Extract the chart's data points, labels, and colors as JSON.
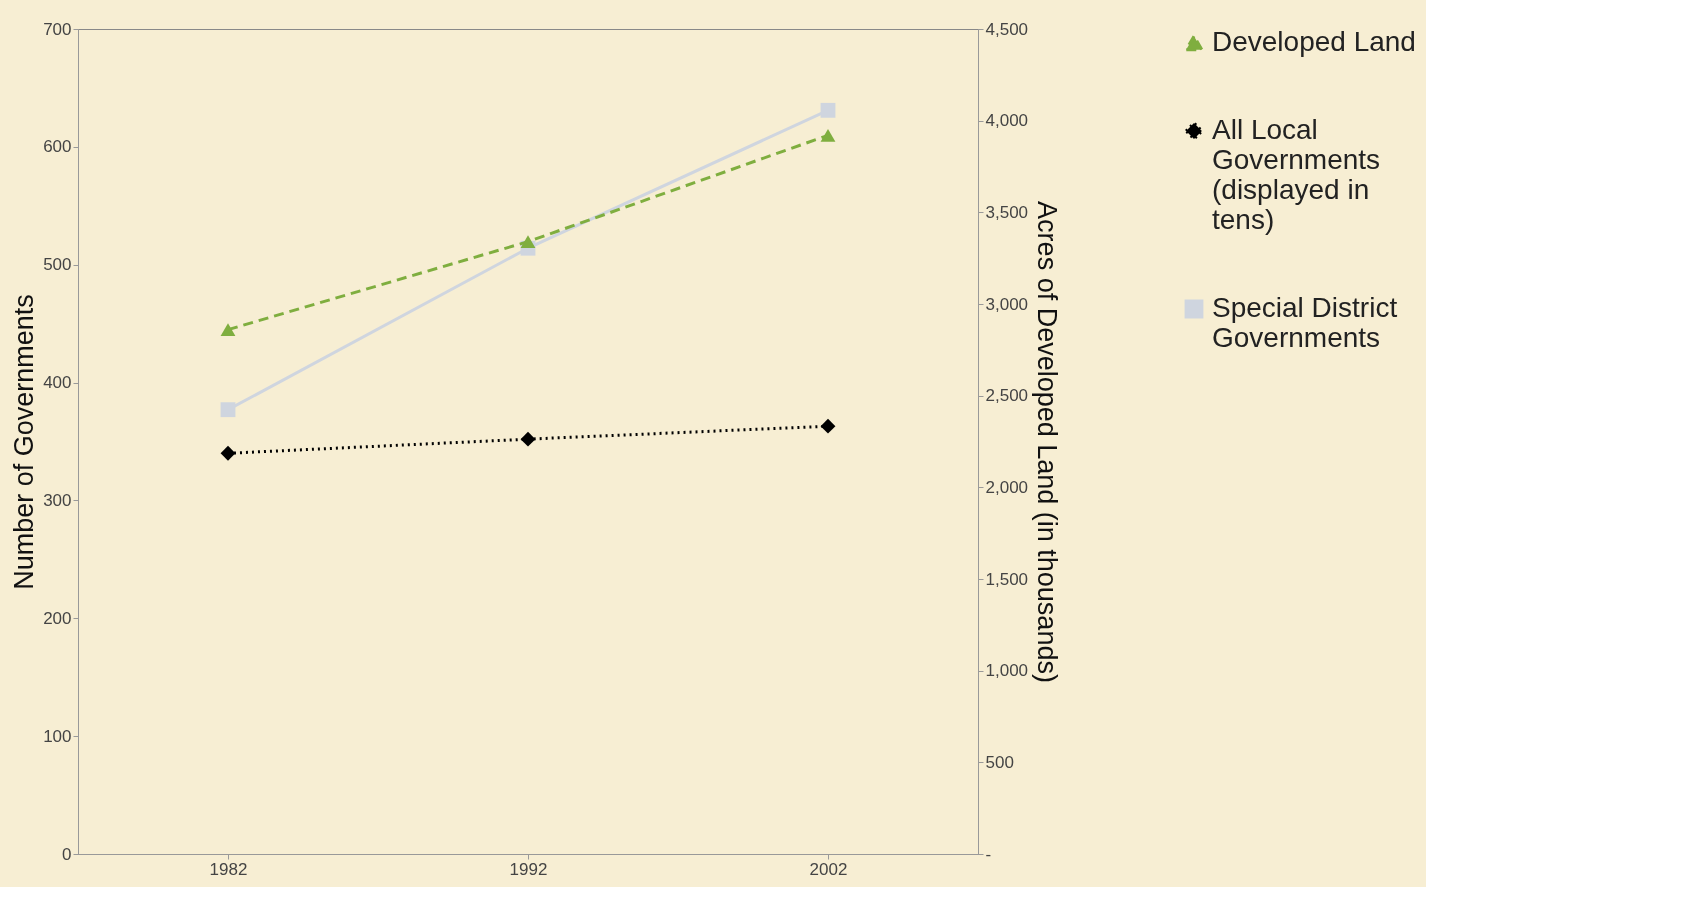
{
  "chart_data": {
    "type": "line",
    "categories": [
      "1982",
      "1992",
      "2002"
    ],
    "ylabel": "Number of Governments",
    "y2label": "Acres of Developed Land (in thousands)",
    "ylim": [
      0,
      700
    ],
    "yticks": [
      0,
      100,
      200,
      300,
      400,
      500,
      600,
      700
    ],
    "y2lim": [
      0,
      4500
    ],
    "y2ticks": [
      {
        "value": 0,
        "label": "-"
      },
      500,
      {
        "value": 1000,
        "label": "1,000"
      },
      {
        "value": 1500,
        "label": "1,500"
      },
      {
        "value": 2000,
        "label": "2,000"
      },
      {
        "value": 2500,
        "label": "2,500"
      },
      {
        "value": 3000,
        "label": "3,000"
      },
      {
        "value": 3500,
        "label": "3,500"
      },
      {
        "value": 4000,
        "label": "4,000"
      },
      {
        "value": 4500,
        "label": "4,500"
      }
    ],
    "series": [
      {
        "name": "Developed Land",
        "color": "#7fae3f",
        "values": [
          2860,
          3340,
          3920
        ],
        "axis": "y2",
        "line_style": "dashed",
        "marker": "triangle"
      },
      {
        "name": "All Local Governments (displayed in tens)",
        "color": "#000000",
        "values": [
          340,
          352,
          363
        ],
        "line_style": "dotted",
        "marker": "diamond"
      },
      {
        "name": "Special District Governments",
        "color": "#cfd5df",
        "values": [
          377,
          514,
          631
        ],
        "line_style": "solid",
        "marker": "square"
      }
    ],
    "legend": "right",
    "grid": false
  }
}
